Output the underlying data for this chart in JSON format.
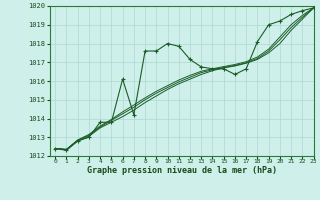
{
  "xlabel": "Graphe pression niveau de la mer (hPa)",
  "background_color": "#cff0ea",
  "grid_color": "#aad8d0",
  "line_color": "#1a5c28",
  "xlim": [
    -0.5,
    23
  ],
  "ylim": [
    1012,
    1020
  ],
  "yticks": [
    1012,
    1013,
    1014,
    1015,
    1016,
    1017,
    1018,
    1019,
    1020
  ],
  "xticks": [
    0,
    1,
    2,
    3,
    4,
    5,
    6,
    7,
    8,
    9,
    10,
    11,
    12,
    13,
    14,
    15,
    16,
    17,
    18,
    19,
    20,
    21,
    22,
    23
  ],
  "series_jagged": [
    1012.4,
    1012.3,
    1012.8,
    1013.0,
    1013.8,
    1013.8,
    1016.1,
    1014.2,
    1017.6,
    1017.6,
    1018.0,
    1017.85,
    1017.15,
    1016.75,
    1016.65,
    1016.65,
    1016.35,
    1016.65,
    1018.1,
    1019.0,
    1019.2,
    1019.55,
    1019.75,
    1019.9
  ],
  "series_line1": [
    1012.4,
    1012.35,
    1012.8,
    1013.05,
    1013.5,
    1013.8,
    1014.1,
    1014.45,
    1014.85,
    1015.2,
    1015.55,
    1015.85,
    1016.1,
    1016.35,
    1016.55,
    1016.7,
    1016.8,
    1016.95,
    1017.15,
    1017.5,
    1018.0,
    1018.7,
    1019.3,
    1019.9
  ],
  "series_line2": [
    1012.4,
    1012.35,
    1012.85,
    1013.1,
    1013.55,
    1013.9,
    1014.25,
    1014.6,
    1015.0,
    1015.35,
    1015.65,
    1015.95,
    1016.2,
    1016.45,
    1016.6,
    1016.72,
    1016.83,
    1016.97,
    1017.2,
    1017.6,
    1018.2,
    1018.85,
    1019.4,
    1019.9
  ],
  "series_line3": [
    1012.4,
    1012.35,
    1012.85,
    1013.15,
    1013.6,
    1013.95,
    1014.35,
    1014.72,
    1015.1,
    1015.45,
    1015.75,
    1016.05,
    1016.3,
    1016.52,
    1016.65,
    1016.77,
    1016.88,
    1017.03,
    1017.28,
    1017.7,
    1018.35,
    1019.0,
    1019.5,
    1019.9
  ]
}
